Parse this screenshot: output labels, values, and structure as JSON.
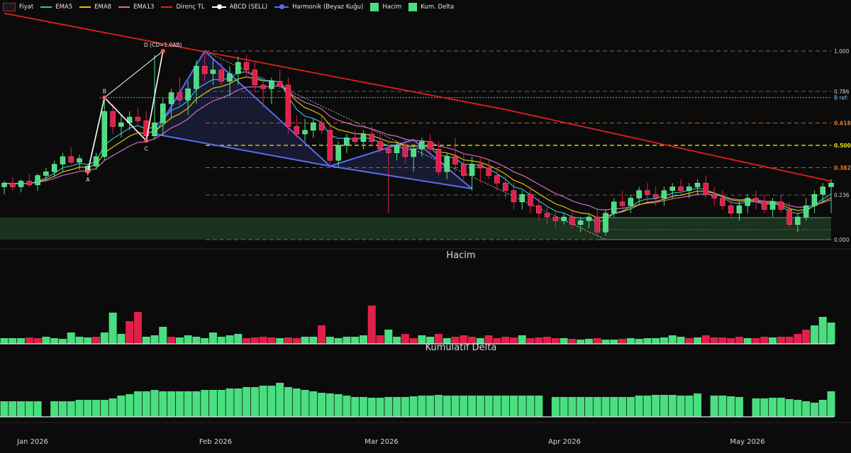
{
  "legend": [
    {
      "label": "Fiyat",
      "kind": "box",
      "color": "#c8102e",
      "icon": "candle-swatch-icon"
    },
    {
      "label": "EMA5",
      "kind": "line",
      "color": "#35b9d6",
      "icon": "line-swatch-icon"
    },
    {
      "label": "EMA8",
      "kind": "line",
      "color": "#e5c400",
      "icon": "line-swatch-icon"
    },
    {
      "label": "EMA13",
      "kind": "line",
      "color": "#d36bc7",
      "icon": "line-swatch-icon"
    },
    {
      "label": "Direnç TL",
      "kind": "line",
      "color": "#e0201c",
      "icon": "line-swatch-icon"
    },
    {
      "label": "ABCD (SELL)",
      "kind": "dot",
      "color": "#ffffff",
      "icon": "dot-line-swatch-icon"
    },
    {
      "label": "Harmonik (Beyaz Kuğu)",
      "kind": "dot",
      "color": "#5a6cf0",
      "icon": "dot-line-swatch-icon"
    },
    {
      "label": "Hacim",
      "kind": "box",
      "color": "#4ade80",
      "icon": "box-swatch-icon"
    },
    {
      "label": "Kum. Delta",
      "kind": "box",
      "color": "#4ade80",
      "icon": "box-swatch-icon"
    }
  ],
  "colors": {
    "up": "#4ade80",
    "down": "#e0204a",
    "ema5": "#35b9d6",
    "ema8": "#e5c400",
    "ema13": "#d36bc7",
    "resistance": "#e0201c",
    "harmonic": "#5a6cf0",
    "abcd": "#ffffff",
    "zone": "#1d3a22",
    "fib_grey": "#8a8a8a",
    "fib_orange": "#e07a2a",
    "fib_yellow": "#f5e400",
    "b_ref": "#7ec8ff"
  },
  "chart_data": [
    {
      "type": "candlestick",
      "title": "",
      "x_ticks": [
        "Jan 2026",
        "Feb 2026",
        "Mar 2026",
        "Apr 2026",
        "May 2026"
      ],
      "n_bars": 100,
      "ylim": [
        0,
        1.0
      ],
      "y_unit": "fib-normalized price",
      "fib_levels": [
        {
          "label": "1.000",
          "value": 1.0,
          "style": "grey"
        },
        {
          "label": "0.786",
          "value": 0.786,
          "style": "grey"
        },
        {
          "label": "0.618",
          "value": 0.618,
          "style": "orange"
        },
        {
          "label": "0.500",
          "value": 0.5,
          "style": "yellow"
        },
        {
          "label": "0.382",
          "value": 0.382,
          "style": "orange"
        },
        {
          "label": "0.236",
          "value": 0.236,
          "style": "grey"
        },
        {
          "label": "0.000",
          "value": 0.0,
          "style": "grey"
        }
      ],
      "b_ref": {
        "label": "B ref:",
        "value": 0.753
      },
      "abcd_points": [
        {
          "label": "A",
          "bar": 10,
          "value": 0.36
        },
        {
          "label": "B",
          "bar": 12,
          "value": 0.753
        },
        {
          "label": "C",
          "bar": 17,
          "value": 0.525
        },
        {
          "label": "D (CD=1.0AB)",
          "bar": 19,
          "value": 1.0
        }
      ],
      "harmonic_points": [
        {
          "bar": 18,
          "value": 0.56
        },
        {
          "bar": 24,
          "value": 1.0
        },
        {
          "bar": 39,
          "value": 0.39
        },
        {
          "bar": 49,
          "value": 0.53
        },
        {
          "bar": 56,
          "value": 0.27
        },
        {
          "bar": 25,
          "value": 0.5
        }
      ],
      "resistance": [
        [
          0,
          1.2
        ],
        [
          60,
          0.69
        ],
        [
          85,
          0.445
        ],
        [
          99,
          0.31
        ]
      ],
      "candles": [
        [
          0.28,
          0.31,
          0.24,
          0.3
        ],
        [
          0.3,
          0.33,
          0.26,
          0.28
        ],
        [
          0.28,
          0.32,
          0.25,
          0.31
        ],
        [
          0.31,
          0.35,
          0.28,
          0.29
        ],
        [
          0.29,
          0.35,
          0.26,
          0.34
        ],
        [
          0.34,
          0.38,
          0.31,
          0.36
        ],
        [
          0.36,
          0.42,
          0.33,
          0.4
        ],
        [
          0.4,
          0.46,
          0.36,
          0.44
        ],
        [
          0.44,
          0.49,
          0.4,
          0.41
        ],
        [
          0.41,
          0.45,
          0.37,
          0.43
        ],
        [
          0.36,
          0.4,
          0.34,
          0.39
        ],
        [
          0.39,
          0.46,
          0.37,
          0.44
        ],
        [
          0.44,
          0.75,
          0.42,
          0.68
        ],
        [
          0.68,
          0.72,
          0.56,
          0.6
        ],
        [
          0.6,
          0.66,
          0.54,
          0.62
        ],
        [
          0.62,
          0.68,
          0.58,
          0.65
        ],
        [
          0.65,
          0.7,
          0.6,
          0.63
        ],
        [
          0.63,
          0.68,
          0.52,
          0.55
        ],
        [
          0.55,
          0.98,
          0.53,
          0.62
        ],
        [
          0.62,
          0.75,
          0.55,
          0.72
        ],
        [
          0.72,
          0.8,
          0.64,
          0.78
        ],
        [
          0.78,
          0.86,
          0.7,
          0.74
        ],
        [
          0.74,
          0.84,
          0.66,
          0.8
        ],
        [
          0.8,
          0.95,
          0.72,
          0.92
        ],
        [
          0.92,
          1.0,
          0.84,
          0.88
        ],
        [
          0.88,
          0.96,
          0.82,
          0.9
        ],
        [
          0.9,
          0.94,
          0.82,
          0.84
        ],
        [
          0.84,
          0.92,
          0.76,
          0.88
        ],
        [
          0.88,
          0.97,
          0.82,
          0.94
        ],
        [
          0.94,
          0.98,
          0.86,
          0.9
        ],
        [
          0.9,
          0.94,
          0.78,
          0.82
        ],
        [
          0.82,
          0.86,
          0.7,
          0.8
        ],
        [
          0.8,
          0.86,
          0.72,
          0.84
        ],
        [
          0.84,
          0.9,
          0.8,
          0.82
        ],
        [
          0.82,
          0.86,
          0.56,
          0.6
        ],
        [
          0.6,
          0.66,
          0.54,
          0.56
        ],
        [
          0.56,
          0.64,
          0.52,
          0.58
        ],
        [
          0.58,
          0.64,
          0.54,
          0.62
        ],
        [
          0.62,
          0.66,
          0.56,
          0.58
        ],
        [
          0.58,
          0.62,
          0.4,
          0.42
        ],
        [
          0.42,
          0.52,
          0.38,
          0.5
        ],
        [
          0.5,
          0.56,
          0.46,
          0.54
        ],
        [
          0.54,
          0.58,
          0.5,
          0.52
        ],
        [
          0.52,
          0.58,
          0.48,
          0.56
        ],
        [
          0.56,
          0.6,
          0.5,
          0.52
        ],
        [
          0.52,
          0.56,
          0.46,
          0.48
        ],
        [
          0.48,
          0.52,
          0.14,
          0.46
        ],
        [
          0.46,
          0.52,
          0.42,
          0.5
        ],
        [
          0.5,
          0.54,
          0.4,
          0.44
        ],
        [
          0.44,
          0.5,
          0.36,
          0.48
        ],
        [
          0.48,
          0.54,
          0.44,
          0.52
        ],
        [
          0.52,
          0.56,
          0.46,
          0.48
        ],
        [
          0.48,
          0.52,
          0.34,
          0.36
        ],
        [
          0.36,
          0.46,
          0.32,
          0.44
        ],
        [
          0.44,
          0.54,
          0.36,
          0.4
        ],
        [
          0.4,
          0.46,
          0.32,
          0.34
        ],
        [
          0.34,
          0.44,
          0.26,
          0.4
        ],
        [
          0.4,
          0.44,
          0.3,
          0.38
        ],
        [
          0.38,
          0.42,
          0.32,
          0.34
        ],
        [
          0.34,
          0.38,
          0.26,
          0.3
        ],
        [
          0.3,
          0.34,
          0.22,
          0.26
        ],
        [
          0.26,
          0.3,
          0.16,
          0.2
        ],
        [
          0.2,
          0.26,
          0.16,
          0.24
        ],
        [
          0.24,
          0.28,
          0.14,
          0.18
        ],
        [
          0.18,
          0.22,
          0.1,
          0.14
        ],
        [
          0.14,
          0.18,
          0.08,
          0.12
        ],
        [
          0.12,
          0.16,
          0.06,
          0.1
        ],
        [
          0.1,
          0.14,
          0.08,
          0.12
        ],
        [
          0.12,
          0.16,
          0.06,
          0.08
        ],
        [
          0.08,
          0.12,
          0.04,
          0.1
        ],
        [
          0.1,
          0.14,
          0.06,
          0.12
        ],
        [
          0.12,
          0.16,
          0.02,
          0.04
        ],
        [
          0.04,
          0.16,
          0.02,
          0.14
        ],
        [
          0.14,
          0.22,
          0.12,
          0.2
        ],
        [
          0.2,
          0.26,
          0.16,
          0.18
        ],
        [
          0.18,
          0.24,
          0.14,
          0.22
        ],
        [
          0.22,
          0.28,
          0.18,
          0.26
        ],
        [
          0.26,
          0.3,
          0.2,
          0.24
        ],
        [
          0.24,
          0.28,
          0.18,
          0.22
        ],
        [
          0.22,
          0.28,
          0.18,
          0.26
        ],
        [
          0.26,
          0.3,
          0.22,
          0.28
        ],
        [
          0.28,
          0.32,
          0.24,
          0.26
        ],
        [
          0.26,
          0.3,
          0.22,
          0.28
        ],
        [
          0.28,
          0.32,
          0.24,
          0.3
        ],
        [
          0.3,
          0.34,
          0.22,
          0.24
        ],
        [
          0.24,
          0.28,
          0.18,
          0.22
        ],
        [
          0.22,
          0.26,
          0.16,
          0.18
        ],
        [
          0.18,
          0.22,
          0.12,
          0.14
        ],
        [
          0.14,
          0.2,
          0.1,
          0.18
        ],
        [
          0.18,
          0.24,
          0.14,
          0.22
        ],
        [
          0.22,
          0.26,
          0.16,
          0.2
        ],
        [
          0.2,
          0.24,
          0.14,
          0.16
        ],
        [
          0.16,
          0.22,
          0.12,
          0.2
        ],
        [
          0.2,
          0.24,
          0.14,
          0.16
        ],
        [
          0.16,
          0.2,
          0.06,
          0.08
        ],
        [
          0.08,
          0.14,
          0.04,
          0.12
        ],
        [
          0.12,
          0.22,
          0.1,
          0.18
        ],
        [
          0.18,
          0.26,
          0.14,
          0.24
        ],
        [
          0.24,
          0.3,
          0.2,
          0.28
        ],
        [
          0.28,
          0.32,
          0.14,
          0.3
        ]
      ]
    },
    {
      "type": "bar",
      "title": "Hacim",
      "series": [
        {
          "values": [
            8,
            8,
            8,
            9,
            8,
            10,
            8,
            7,
            16,
            10,
            9,
            10,
            16,
            44,
            14,
            32,
            45,
            10,
            12,
            24,
            10,
            9,
            12,
            10,
            8,
            16,
            10,
            12,
            14,
            8,
            9,
            10,
            9,
            8,
            9,
            8,
            10,
            10,
            26,
            10,
            8,
            10,
            10,
            12,
            54,
            12,
            20,
            10,
            14,
            8,
            12,
            10,
            14,
            8,
            10,
            12,
            10,
            8,
            12,
            8,
            10,
            9,
            12,
            8,
            9,
            10,
            8,
            8,
            7,
            6,
            7,
            8,
            6,
            6,
            7,
            8,
            7,
            8,
            8,
            9,
            12,
            10,
            8,
            9,
            12,
            9,
            9,
            8,
            10,
            8,
            8,
            10,
            9,
            10,
            10,
            14,
            20,
            26,
            38,
            30
          ]
        }
      ],
      "colors_down": [
        3,
        4,
        11,
        15,
        16,
        20,
        29,
        30,
        31,
        32,
        34,
        35,
        38,
        44,
        45,
        48,
        49,
        52,
        54,
        55,
        56,
        58,
        59,
        60,
        61,
        63,
        64,
        65,
        66,
        68,
        71,
        74,
        82,
        84,
        85,
        86,
        87,
        88,
        90,
        91,
        93,
        94,
        95,
        96
      ]
    },
    {
      "type": "bar",
      "title": "Kümülatif Delta",
      "series": [
        {
          "values": [
            22,
            22,
            22,
            22,
            22,
            0,
            22,
            22,
            22,
            24,
            24,
            24,
            24,
            26,
            30,
            32,
            36,
            36,
            38,
            36,
            36,
            36,
            36,
            36,
            38,
            38,
            38,
            40,
            40,
            42,
            42,
            44,
            44,
            48,
            42,
            40,
            38,
            36,
            34,
            33,
            32,
            30,
            28,
            28,
            27,
            27,
            28,
            28,
            28,
            29,
            30,
            30,
            31,
            30,
            30,
            30,
            30,
            30,
            30,
            30,
            30,
            30,
            30,
            30,
            30,
            0,
            28,
            28,
            28,
            28,
            28,
            28,
            28,
            28,
            28,
            28,
            30,
            30,
            31,
            31,
            31,
            30,
            30,
            33,
            0,
            30,
            30,
            29,
            28,
            0,
            26,
            26,
            27,
            27,
            25,
            24,
            22,
            20,
            24,
            36
          ]
        }
      ]
    }
  ],
  "panels": {
    "volume_title": "Hacim",
    "delta_title": "Kümülatif Delta"
  }
}
